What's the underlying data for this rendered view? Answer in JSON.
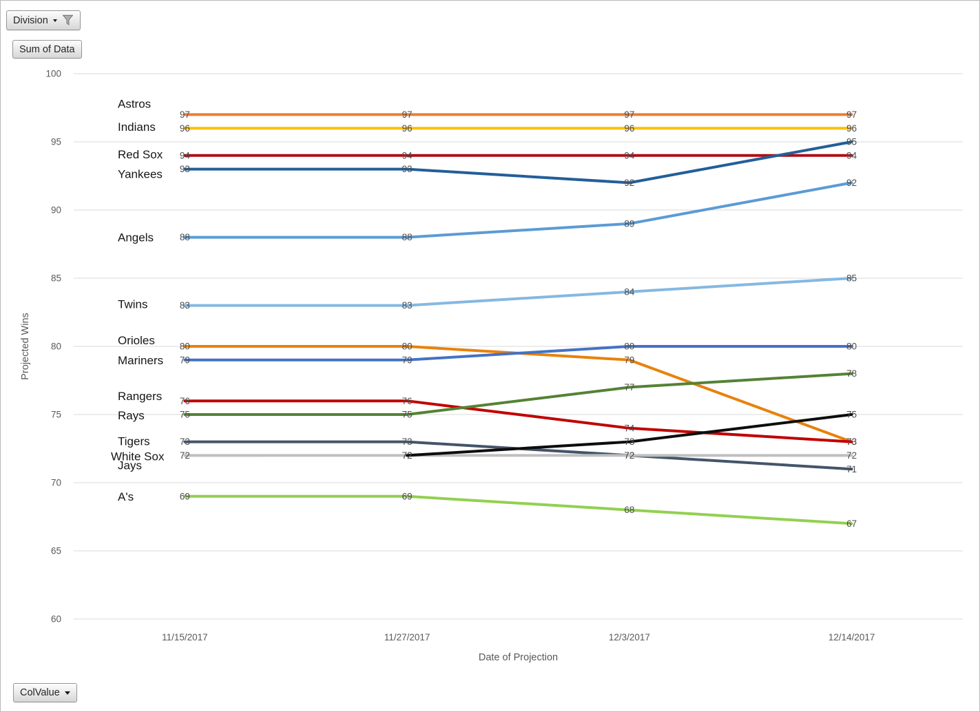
{
  "pivot_buttons": {
    "division": {
      "label": "Division"
    },
    "sum_of_data": {
      "label": "Sum of Data"
    },
    "colvalue": {
      "label": "ColValue"
    }
  },
  "chart_data": {
    "type": "line",
    "title": "",
    "xlabel": "Date of Projection",
    "ylabel": "Projected Wins",
    "categories": [
      "11/15/2017",
      "11/27/2017",
      "12/3/2017",
      "12/14/2017"
    ],
    "ylim": [
      60,
      100
    ],
    "ytick_step": 5,
    "grid": "horizontal-only",
    "legend_position": "series-name-labels-at-left",
    "gridline_color": "#D9D9D9",
    "axis_text_color": "#595959",
    "data_label_color": "#4D4D4D",
    "series_name_color": "#161616",
    "line_width": 4,
    "series": [
      {
        "name": "Astros",
        "color": "#ED7D31",
        "values": [
          97,
          97,
          97,
          97
        ],
        "name_dy": -16
      },
      {
        "name": "Indians",
        "color": "#FFC000",
        "values": [
          96,
          96,
          96,
          96
        ],
        "name_dy": -2
      },
      {
        "name": "Red Sox",
        "color": "#B00D15",
        "values": [
          94,
          94,
          94,
          94
        ],
        "name_dy": -2
      },
      {
        "name": "Yankees",
        "color": "#235E99",
        "values": [
          93,
          93,
          92,
          95
        ],
        "name_dy": 7
      },
      {
        "name": "Angels",
        "color": "#5B9BD5",
        "values": [
          88,
          88,
          89,
          92
        ],
        "name_dy": 0
      },
      {
        "name": "Twins",
        "color": "#85B8E1",
        "values": [
          83,
          83,
          84,
          85
        ],
        "name_dy": -2
      },
      {
        "name": "Orioles",
        "color": "#E8820C",
        "values": [
          80,
          80,
          79,
          73
        ],
        "name_dy": -9
      },
      {
        "name": "Mariners",
        "color": "#4472C4",
        "values": [
          79,
          79,
          80,
          80
        ],
        "name_dy": 0
      },
      {
        "name": "Rangers",
        "color": "#C00000",
        "values": [
          76,
          76,
          74,
          73
        ],
        "name_dy": -7
      },
      {
        "name": "Rays",
        "color": "#548235",
        "values": [
          75,
          75,
          77,
          78
        ],
        "name_dy": 1
      },
      {
        "name": "Tigers",
        "color": "#44546A",
        "values": [
          73,
          73,
          72,
          71
        ],
        "name_dy": -1
      },
      {
        "name": "White Sox",
        "color": "#BFBFBF",
        "values": [
          72,
          72,
          72,
          72
        ],
        "name_dy": 1,
        "name_dx": -10
      },
      {
        "name": "Jays",
        "color": "#0D0D0D",
        "values": [
          null,
          72,
          73,
          75
        ],
        "name_dy": 14
      },
      {
        "name": "A's",
        "color": "#92D050",
        "values": [
          69,
          69,
          68,
          67
        ],
        "name_dy": 0
      }
    ]
  }
}
